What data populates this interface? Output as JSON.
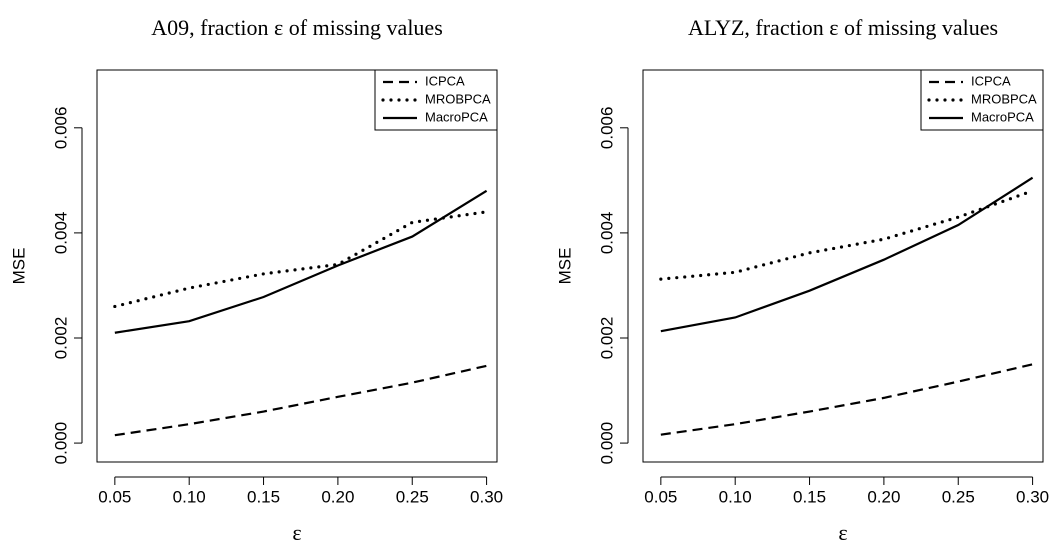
{
  "chart_data": [
    {
      "type": "line",
      "title": "A09, fraction ε of missing values",
      "x_label": "ε",
      "y_label": "MSE",
      "x": [
        0.05,
        0.1,
        0.15,
        0.2,
        0.25,
        0.3
      ],
      "series": [
        {
          "name": "ICPCA",
          "color": "#000000",
          "linestyle": "dashed",
          "values": [
            0.00015,
            0.00036,
            0.0006,
            0.00088,
            0.00115,
            0.00147
          ]
        },
        {
          "name": "MROBPCA",
          "color": "#000000",
          "linestyle": "dotted",
          "values": [
            0.0026,
            0.00295,
            0.00322,
            0.0034,
            0.0042,
            0.0044
          ]
        },
        {
          "name": "MacroPCA",
          "color": "#000000",
          "linestyle": "solid",
          "values": [
            0.0021,
            0.00232,
            0.00278,
            0.00338,
            0.00393,
            0.0048
          ]
        }
      ],
      "xlim": [
        0.038,
        0.307
      ],
      "ylim": [
        -0.00036,
        0.0071
      ],
      "xticks": [
        0.05,
        {
          "value": 0.1,
          "label": "0.10"
        },
        0.15,
        {
          "value": 0.2,
          "label": "0.20"
        },
        0.25,
        {
          "value": 0.3,
          "label": "0.30"
        }
      ],
      "yticks": [
        {
          "value": 0,
          "label": "0.000"
        },
        {
          "value": 0.002,
          "label": "0.002"
        },
        {
          "value": 0.004,
          "label": "0.004"
        },
        {
          "value": 0.006,
          "label": "0.006"
        }
      ],
      "legend": "top-right"
    },
    {
      "type": "line",
      "title": "ALYZ, fraction ε of missing values",
      "x_label": "ε",
      "y_label": "MSE",
      "x": [
        0.05,
        0.1,
        0.15,
        0.2,
        0.25,
        0.3
      ],
      "series": [
        {
          "name": "ICPCA",
          "color": "#000000",
          "linestyle": "dashed",
          "values": [
            0.00016,
            0.00036,
            0.0006,
            0.00086,
            0.00117,
            0.0015
          ]
        },
        {
          "name": "MROBPCA",
          "color": "#000000",
          "linestyle": "dotted",
          "values": [
            0.00312,
            0.00325,
            0.00362,
            0.00388,
            0.0043,
            0.0048
          ]
        },
        {
          "name": "MacroPCA",
          "color": "#000000",
          "linestyle": "solid",
          "values": [
            0.00213,
            0.00239,
            0.0029,
            0.00349,
            0.00415,
            0.00505
          ]
        }
      ],
      "xlim": [
        0.038,
        0.307
      ],
      "ylim": [
        -0.00036,
        0.0071
      ],
      "xticks": [
        0.05,
        {
          "value": 0.1,
          "label": "0.10"
        },
        0.15,
        {
          "value": 0.2,
          "label": "0.20"
        },
        0.25,
        {
          "value": 0.3,
          "label": "0.30"
        }
      ],
      "yticks": [
        {
          "value": 0,
          "label": "0.000"
        },
        {
          "value": 0.002,
          "label": "0.002"
        },
        {
          "value": 0.004,
          "label": "0.004"
        },
        {
          "value": 0.006,
          "label": "0.006"
        }
      ],
      "legend": "top-right"
    }
  ]
}
